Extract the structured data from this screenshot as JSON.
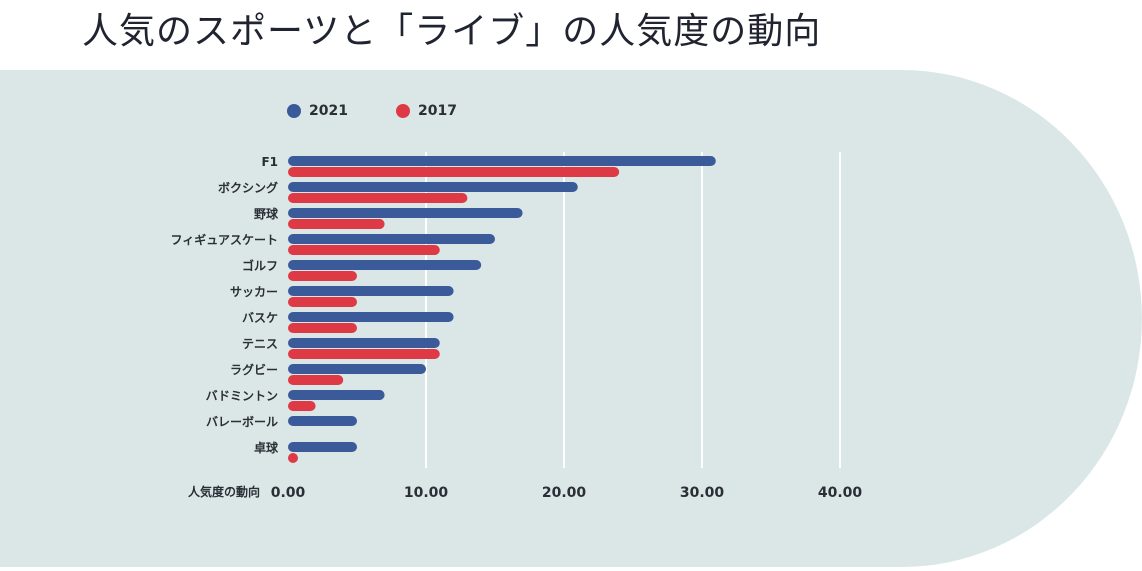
{
  "page": {
    "title": "人気のスポーツと「ライブ」の人気度の動向",
    "panel_color": "#dbe7e7"
  },
  "chart_data": {
    "type": "bar",
    "orientation": "horizontal",
    "title": "人気のスポーツと「ライブ」の人気度の動向",
    "xlabel": "人気度の動向",
    "ylabel": "",
    "xlim": [
      0,
      40
    ],
    "xticks": [
      "0.00",
      "10.00",
      "20.00",
      "30.00",
      "40.00"
    ],
    "grid": true,
    "legend_position": "top-left",
    "categories": [
      "F1",
      "ボクシング",
      "野球",
      "フィギュアスケート",
      "ゴルフ",
      "サッカー",
      "バスケ",
      "テニス",
      "ラグビー",
      "バドミントン",
      "バレーボール",
      "卓球"
    ],
    "series": [
      {
        "name": "2021",
        "color": "#3a5a9a",
        "values": [
          31,
          21,
          17,
          15,
          14,
          12,
          12,
          11,
          10,
          7,
          5,
          5
        ]
      },
      {
        "name": "2017",
        "color": "#de3a46",
        "values": [
          24,
          13,
          7,
          11,
          5,
          5,
          5,
          11,
          4,
          2,
          0,
          0.5
        ]
      }
    ]
  }
}
